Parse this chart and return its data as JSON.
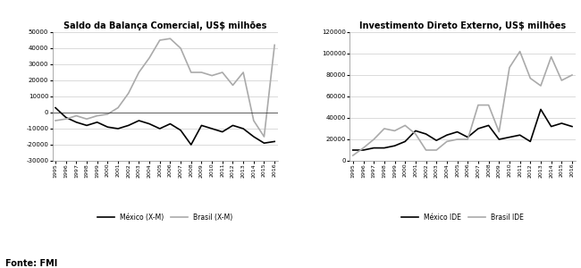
{
  "years": [
    1995,
    1996,
    1997,
    1998,
    1999,
    2000,
    2001,
    2002,
    2003,
    2004,
    2005,
    2006,
    2007,
    2008,
    2009,
    2010,
    2011,
    2012,
    2013,
    2014,
    2015,
    2016
  ],
  "mexico_trade": [
    3000,
    -3000,
    -6000,
    -8000,
    -6000,
    -9000,
    -10000,
    -8000,
    -5000,
    -7000,
    -10000,
    -7000,
    -11000,
    -20000,
    -8000,
    -10000,
    -12000,
    -8000,
    -10000,
    -15000,
    -19000,
    -18000
  ],
  "brasil_trade": [
    -5000,
    -4000,
    -2000,
    -4000,
    -2000,
    -1000,
    3000,
    12000,
    25000,
    34000,
    45000,
    46000,
    40000,
    25000,
    25000,
    23000,
    25000,
    17000,
    25000,
    -5000,
    -15000,
    42000
  ],
  "mexico_ide": [
    10000,
    10000,
    12000,
    12000,
    14000,
    18000,
    28000,
    25000,
    19000,
    24000,
    27000,
    22000,
    30000,
    33000,
    20000,
    22000,
    24000,
    18000,
    48000,
    32000,
    35000,
    32000
  ],
  "brasil_ide": [
    5000,
    12000,
    20000,
    30000,
    28000,
    33000,
    25000,
    10000,
    10000,
    18000,
    20000,
    20000,
    52000,
    52000,
    27000,
    87000,
    102000,
    77000,
    70000,
    97000,
    75000,
    80000
  ],
  "title1": "Saldo da Balança Comercial, US$ milhões",
  "title2": "Investimento Direto Externo, US$ milhões",
  "legend1_mexico": "México (X-M)",
  "legend1_brasil": "Brasil (X-M)",
  "legend2_mexico": "México IDE",
  "legend2_brasil": "Brasil IDE",
  "fonte": "Fonte: FMI",
  "ylim1": [
    -30000,
    50000
  ],
  "ylim2": [
    0,
    120000
  ],
  "yticks1": [
    -30000,
    -20000,
    -10000,
    0,
    10000,
    20000,
    30000,
    40000,
    50000
  ],
  "yticks2": [
    0,
    20000,
    40000,
    60000,
    80000,
    100000,
    120000
  ],
  "color_mexico": "#000000",
  "color_brasil": "#aaaaaa",
  "bg_color": "#ffffff",
  "grid_color": "#cccccc"
}
